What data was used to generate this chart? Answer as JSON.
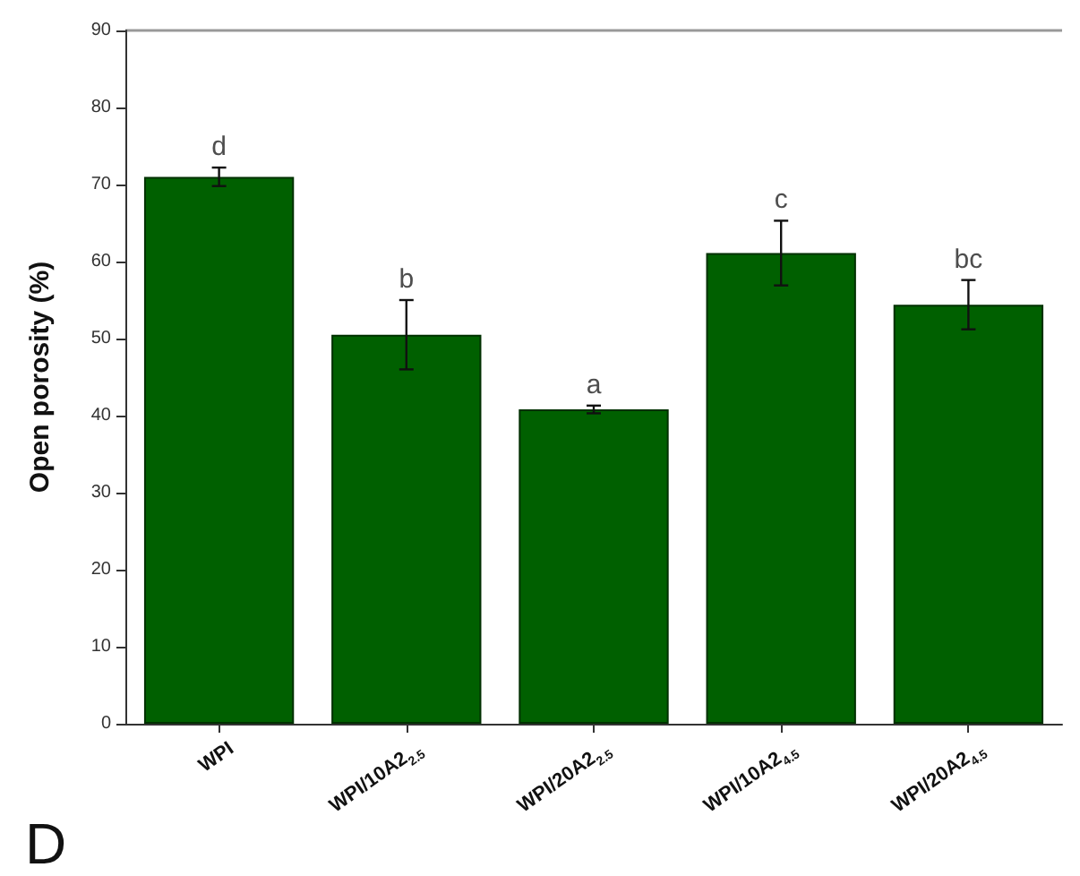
{
  "chart_data": {
    "type": "bar",
    "ylabel": "Open porosity (%)",
    "categories": [
      "WPI",
      "WPI/10A2$_{2.5}$",
      "WPI/20A2$_{2.5}$",
      "WPI/10A2$_{4.5}$",
      "WPI/20A2$_{4.5}$"
    ],
    "values": [
      71.0,
      50.5,
      40.8,
      61.1,
      54.4
    ],
    "errors": [
      1.2,
      4.5,
      0.5,
      4.2,
      3.2
    ],
    "color": "#006000",
    "ylim": [
      0,
      90
    ],
    "yticks": [
      0,
      10,
      20,
      30,
      40,
      50,
      60,
      70,
      80,
      90
    ],
    "grid": false,
    "annotations": [
      {
        "text": "d",
        "x": "WPI",
        "y": 72.2
      },
      {
        "text": "b",
        "x": "WPI/10A2$_{2.5}$",
        "y": 55.0
      },
      {
        "text": "a",
        "x": "WPI/20A2$_{2.5}$",
        "y": 41.3
      },
      {
        "text": "c",
        "x": "WPI/10A2$_{4.5}$",
        "y": 65.3
      },
      {
        "text": "bc",
        "x": "WPI/20A2$_{4.5}$",
        "y": 57.6
      },
      "D"
    ]
  }
}
